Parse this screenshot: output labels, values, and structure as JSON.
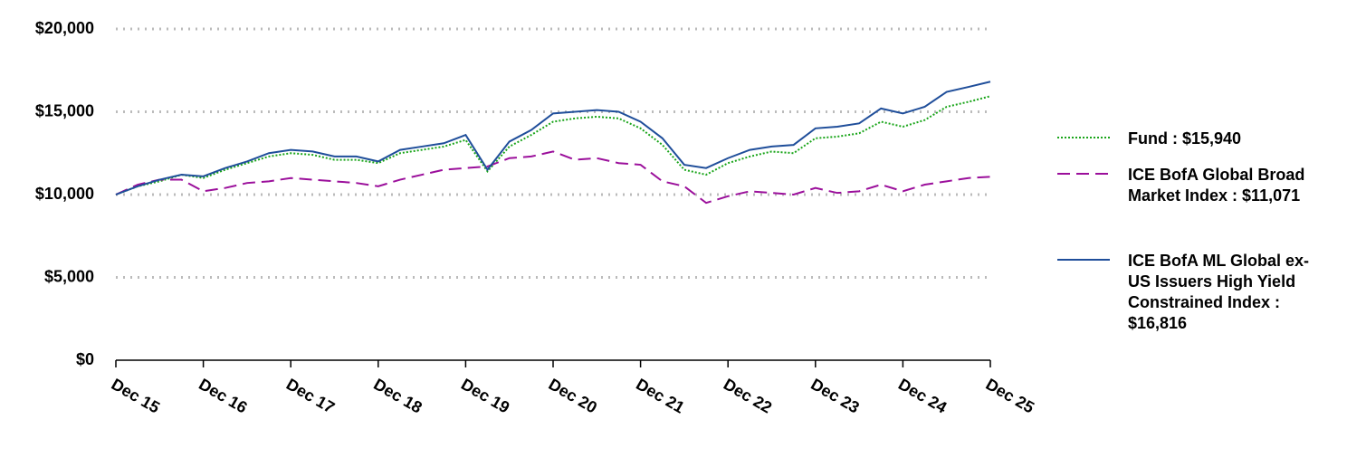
{
  "chart_data": {
    "type": "line",
    "categories": [
      "Dec 15",
      null,
      null,
      null,
      "Dec 16",
      null,
      null,
      null,
      "Dec 17",
      null,
      null,
      null,
      "Dec 18",
      null,
      null,
      null,
      "Dec 19",
      null,
      null,
      null,
      "Dec 20",
      null,
      null,
      null,
      "Dec 21",
      null,
      null,
      null,
      "Dec 22",
      null,
      null,
      null,
      "Dec 23",
      null,
      null,
      null,
      "Dec 24",
      null,
      null,
      null,
      "Dec 25"
    ],
    "series": [
      {
        "name": "Fund : $15,940",
        "color": "#1aa51a",
        "dash": "dotted",
        "values": [
          10000,
          10500,
          10800,
          11200,
          11000,
          11500,
          11900,
          12300,
          12500,
          12400,
          12100,
          12100,
          11900,
          12500,
          12700,
          12900,
          13300,
          11400,
          12900,
          13600,
          14400,
          14600,
          14700,
          14600,
          14000,
          13000,
          11500,
          11200,
          11900,
          12300,
          12600,
          12500,
          13400,
          13500,
          13700,
          14400,
          14100,
          14500,
          15300,
          15600,
          15940
        ]
      },
      {
        "name": "ICE BofA Global Broad Market Index : $11,071",
        "color": "#9b0f9b",
        "dash": "dashed",
        "values": [
          10000,
          10600,
          10900,
          10900,
          10200,
          10400,
          10700,
          10800,
          11000,
          10900,
          10800,
          10700,
          10500,
          10900,
          11200,
          11500,
          11600,
          11700,
          12200,
          12300,
          12600,
          12100,
          12200,
          11900,
          11800,
          10800,
          10500,
          9500,
          9900,
          10200,
          10100,
          10000,
          10400,
          10100,
          10200,
          10600,
          10200,
          10600,
          10800,
          11000,
          11071
        ]
      },
      {
        "name": "ICE BofA ML Global ex-US Issuers High Yield Constrained Index : $16,816",
        "color": "#1f4e9a",
        "dash": "solid",
        "values": [
          10000,
          10500,
          10900,
          11200,
          11100,
          11600,
          12000,
          12500,
          12700,
          12600,
          12300,
          12300,
          12000,
          12700,
          12900,
          13100,
          13600,
          11500,
          13200,
          13900,
          14900,
          15000,
          15100,
          15000,
          14400,
          13400,
          11800,
          11600,
          12200,
          12700,
          12900,
          13000,
          14000,
          14100,
          14300,
          15200,
          14900,
          15300,
          16200,
          16500,
          16816
        ]
      }
    ],
    "ylim": [
      0,
      20000
    ],
    "yticks": [
      {
        "value": 0,
        "label": "$0"
      },
      {
        "value": 5000,
        "label": "$5,000"
      },
      {
        "value": 10000,
        "label": "$10,000"
      },
      {
        "value": 15000,
        "label": "$15,000"
      },
      {
        "value": 20000,
        "label": "$20,000"
      }
    ],
    "grid": true
  }
}
